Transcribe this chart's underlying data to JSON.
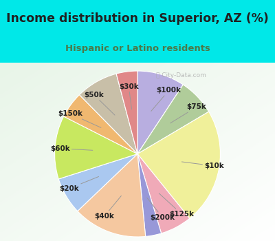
{
  "title": "Income distribution in Superior, AZ (%)",
  "subtitle": "Hispanic or Latino residents",
  "watermark": "⌖ City-Data.com",
  "slices_ordered": [
    "$100k",
    "$75k",
    "$10k",
    "$125k",
    "$200k",
    "$40k",
    "$20k",
    "$60k",
    "$150k",
    "$50k",
    "$30k"
  ],
  "values": [
    9,
    7,
    22,
    6,
    3,
    14,
    7,
    12,
    5,
    8,
    4
  ],
  "colors": [
    "#b8aee0",
    "#b0cc9a",
    "#f0f09a",
    "#f0aab8",
    "#9898d8",
    "#f5c8a0",
    "#aac8f0",
    "#c8e860",
    "#f0b870",
    "#c8bfa8",
    "#e08888"
  ],
  "bg_top": "#00e8e8",
  "bg_chart_tl": "#e8f5e8",
  "bg_chart_br": "#ffffff",
  "title_color": "#202020",
  "subtitle_color": "#4a7a4a",
  "label_color": "#222222",
  "label_fontsize": 7.5,
  "title_fontsize": 12.5,
  "subtitle_fontsize": 9.5,
  "startangle": 90,
  "wedge_edge_color": "#ffffff",
  "wedge_linewidth": 0.8
}
